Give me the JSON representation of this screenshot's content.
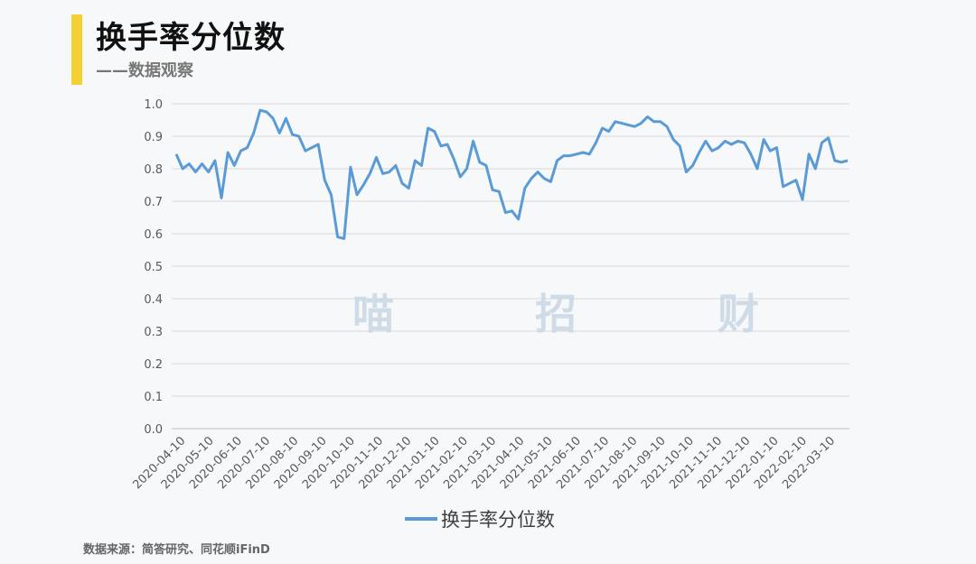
{
  "header": {
    "title": "换手率分位数",
    "subtitle": "——数据观察"
  },
  "watermark": "喵 招 财",
  "footer": {
    "source": "数据来源：简答研究、同花顺iFinD"
  },
  "colors": {
    "accent": "#f5d033",
    "line": "#5b9bd5",
    "grid": "#d9d9d9"
  },
  "chart_data": {
    "type": "line",
    "title": "换手率分位数",
    "xlabel": "",
    "ylabel": "",
    "ylim": [
      0,
      1.0
    ],
    "yticks": [
      0.0,
      0.1,
      0.2,
      0.3,
      0.4,
      0.5,
      0.6,
      0.7,
      0.8,
      0.9,
      1.0
    ],
    "ytick_labels": [
      "0.0",
      "0.1",
      "0.2",
      "0.3",
      "0.4",
      "0.5",
      "0.6",
      "0.7",
      "0.8",
      "0.9",
      "1.0"
    ],
    "xtick_labels": [
      "2020-04-10",
      "2020-05-10",
      "2020-06-10",
      "2020-07-10",
      "2020-08-10",
      "2020-09-10",
      "2020-10-10",
      "2020-11-10",
      "2020-12-10",
      "2021-01-10",
      "2021-02-10",
      "2021-03-10",
      "2021-04-10",
      "2021-05-10",
      "2021-06-10",
      "2021-07-10",
      "2021-08-10",
      "2021-09-10",
      "2021-10-10",
      "2021-11-10",
      "2021-12-10",
      "2022-01-10",
      "2022-02-10",
      "2022-03-10"
    ],
    "grid": "horizontal",
    "legend_position": "bottom",
    "series": [
      {
        "name": "换手率分位数",
        "values": [
          0.845,
          0.8,
          0.815,
          0.79,
          0.815,
          0.79,
          0.825,
          0.71,
          0.85,
          0.81,
          0.855,
          0.865,
          0.91,
          0.98,
          0.975,
          0.955,
          0.91,
          0.955,
          0.905,
          0.9,
          0.855,
          0.865,
          0.875,
          0.765,
          0.72,
          0.59,
          0.585,
          0.805,
          0.72,
          0.75,
          0.785,
          0.835,
          0.785,
          0.79,
          0.81,
          0.755,
          0.74,
          0.825,
          0.81,
          0.925,
          0.915,
          0.87,
          0.875,
          0.83,
          0.775,
          0.8,
          0.885,
          0.82,
          0.81,
          0.735,
          0.73,
          0.665,
          0.67,
          0.645,
          0.74,
          0.77,
          0.79,
          0.77,
          0.76,
          0.825,
          0.84,
          0.84,
          0.845,
          0.85,
          0.845,
          0.88,
          0.925,
          0.915,
          0.945,
          0.94,
          0.935,
          0.93,
          0.94,
          0.96,
          0.945,
          0.945,
          0.93,
          0.89,
          0.87,
          0.79,
          0.81,
          0.85,
          0.885,
          0.855,
          0.865,
          0.885,
          0.875,
          0.885,
          0.88,
          0.845,
          0.8,
          0.89,
          0.855,
          0.865,
          0.745,
          0.755,
          0.765,
          0.705,
          0.845,
          0.8,
          0.88,
          0.895,
          0.825,
          0.82,
          0.825
        ]
      }
    ]
  }
}
